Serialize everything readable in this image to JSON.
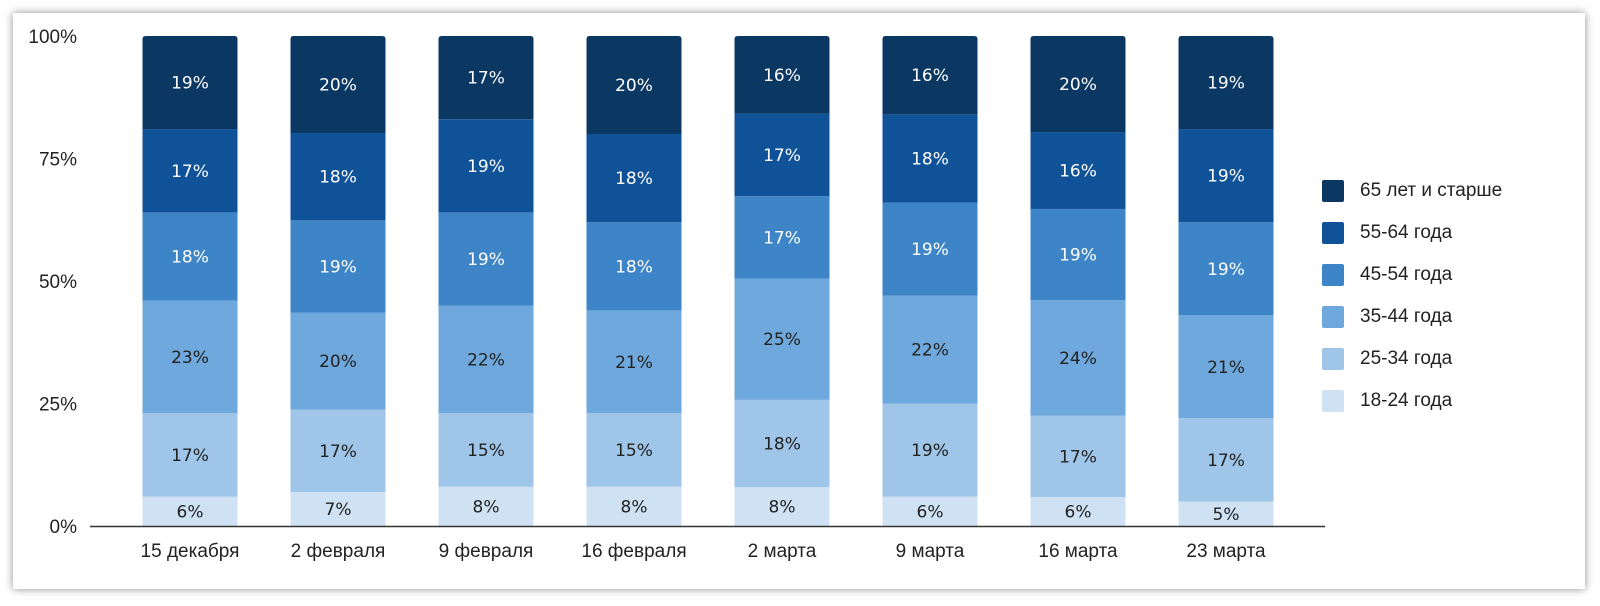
{
  "chart_data": {
    "type": "bar",
    "stacked": true,
    "normalized": true,
    "categories": [
      "15 декабря",
      "2 февраля",
      "9 февраля",
      "16 февраля",
      "2 марта",
      "9 марта",
      "16 марта",
      "23 марта"
    ],
    "series": [
      {
        "name": "18-24 года",
        "color": "#cfe2f3",
        "label_color": "#222222",
        "values": [
          6,
          7,
          8,
          8,
          8,
          6,
          6,
          5
        ]
      },
      {
        "name": "25-34 года",
        "color": "#9fc5e8",
        "label_color": "#222222",
        "values": [
          17,
          17,
          15,
          15,
          18,
          19,
          17,
          17
        ]
      },
      {
        "name": "35-44 года",
        "color": "#6fa8dc",
        "label_color": "#222222",
        "values": [
          23,
          20,
          22,
          21,
          25,
          22,
          24,
          21
        ]
      },
      {
        "name": "45-54 года",
        "color": "#3d85c6",
        "label_color": "#ffffff",
        "values": [
          18,
          19,
          19,
          18,
          17,
          19,
          19,
          19
        ]
      },
      {
        "name": "55-64 года",
        "color": "#0f5298",
        "label_color": "#ffffff",
        "values": [
          17,
          18,
          19,
          18,
          17,
          18,
          16,
          19
        ]
      },
      {
        "name": "65 лет и старше",
        "color": "#0b3763",
        "label_color": "#ffffff",
        "values": [
          19,
          20,
          17,
          20,
          16,
          16,
          20,
          19
        ]
      }
    ],
    "yticks": [
      "0%",
      "25%",
      "50%",
      "75%",
      "100%"
    ],
    "ylim": [
      0,
      100
    ],
    "legend_position": "right",
    "grid": false,
    "title": "",
    "xlabel": "",
    "ylabel": ""
  }
}
